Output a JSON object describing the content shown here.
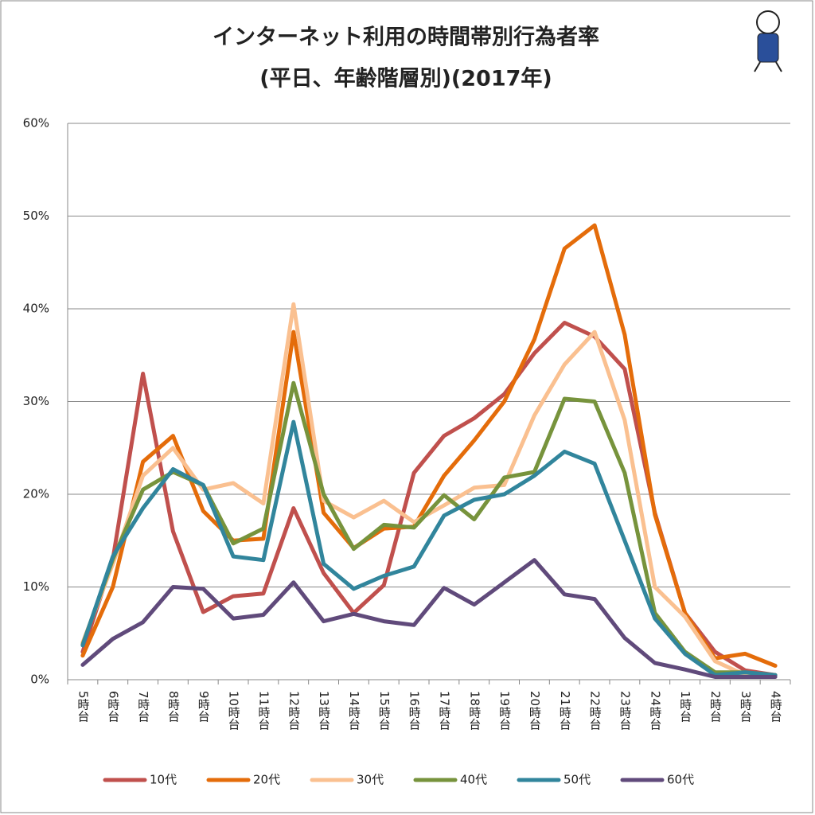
{
  "chart_data": {
    "type": "line",
    "title": "インターネット利用の時間帯別行為者率",
    "subtitle": "(平日、年齢階層別)(2017年)",
    "categories": [
      "5時台",
      "6時台",
      "7時台",
      "8時台",
      "9時台",
      "10時台",
      "11時台",
      "12時台",
      "13時台",
      "14時台",
      "15時台",
      "16時台",
      "17時台",
      "18時台",
      "19時台",
      "20時台",
      "21時台",
      "22時台",
      "23時台",
      "24時台",
      "1時台",
      "2時台",
      "3時台",
      "4時台"
    ],
    "series": [
      {
        "name": "10代",
        "color": "#c0504d",
        "values": [
          3.0,
          13,
          33,
          16,
          7.3,
          9.0,
          9.3,
          18.5,
          11.5,
          7.2,
          10.2,
          22.3,
          26.3,
          28.2,
          30.8,
          35.2,
          38.5,
          37,
          33.5,
          18,
          7.2,
          3,
          1,
          0.5
        ]
      },
      {
        "name": "20代",
        "color": "#e46c0a",
        "values": [
          2.6,
          10,
          23.5,
          26.3,
          18.2,
          15,
          15.2,
          37.5,
          18,
          14.2,
          16.3,
          16.5,
          22,
          25.8,
          30,
          36.7,
          46.5,
          49,
          37.2,
          17.8,
          7.2,
          2.3,
          2.8,
          1.5
        ]
      },
      {
        "name": "30代",
        "color": "#fac090",
        "values": [
          4,
          12.5,
          22,
          25,
          20.5,
          21.2,
          19,
          40.5,
          19.3,
          17.5,
          19.3,
          17,
          18.8,
          20.7,
          21,
          28.5,
          34,
          37.5,
          28,
          10,
          6.8,
          2,
          0.5,
          0.5
        ]
      },
      {
        "name": "40代",
        "color": "#77933c",
        "values": [
          3.8,
          13,
          20.5,
          22.4,
          21,
          14.7,
          16.3,
          32,
          20,
          14.1,
          16.7,
          16.4,
          19.9,
          17.3,
          21.8,
          22.4,
          30.3,
          30,
          22.3,
          7.2,
          3,
          0.8,
          0.8,
          0.5
        ]
      },
      {
        "name": "50代",
        "color": "#31859c",
        "values": [
          3.7,
          13.3,
          18.5,
          22.7,
          21,
          13.3,
          12.9,
          27.8,
          12.5,
          9.8,
          11.2,
          12.2,
          17.7,
          19.4,
          20,
          22,
          24.6,
          23.3,
          15,
          6.6,
          2.8,
          0.5,
          0.8,
          0.5
        ]
      },
      {
        "name": "60代",
        "color": "#604a7b",
        "values": [
          1.6,
          4.4,
          6.2,
          10,
          9.8,
          6.6,
          7,
          10.5,
          6.3,
          7.1,
          6.3,
          5.9,
          9.9,
          8.1,
          10.5,
          12.9,
          9.2,
          8.7,
          4.5,
          1.8,
          1.1,
          0.3,
          0.3,
          0.3
        ]
      }
    ],
    "ylim": [
      0,
      60
    ],
    "yticks": [
      {
        "value": 0,
        "label": "0%"
      },
      {
        "value": 10,
        "label": "10%"
      },
      {
        "value": 20,
        "label": "20%"
      },
      {
        "value": 30,
        "label": "30%"
      },
      {
        "value": 40,
        "label": "40%"
      },
      {
        "value": 50,
        "label": "50%"
      },
      {
        "value": 60,
        "label": "60%"
      }
    ],
    "grid": true,
    "legend": "bottom"
  }
}
